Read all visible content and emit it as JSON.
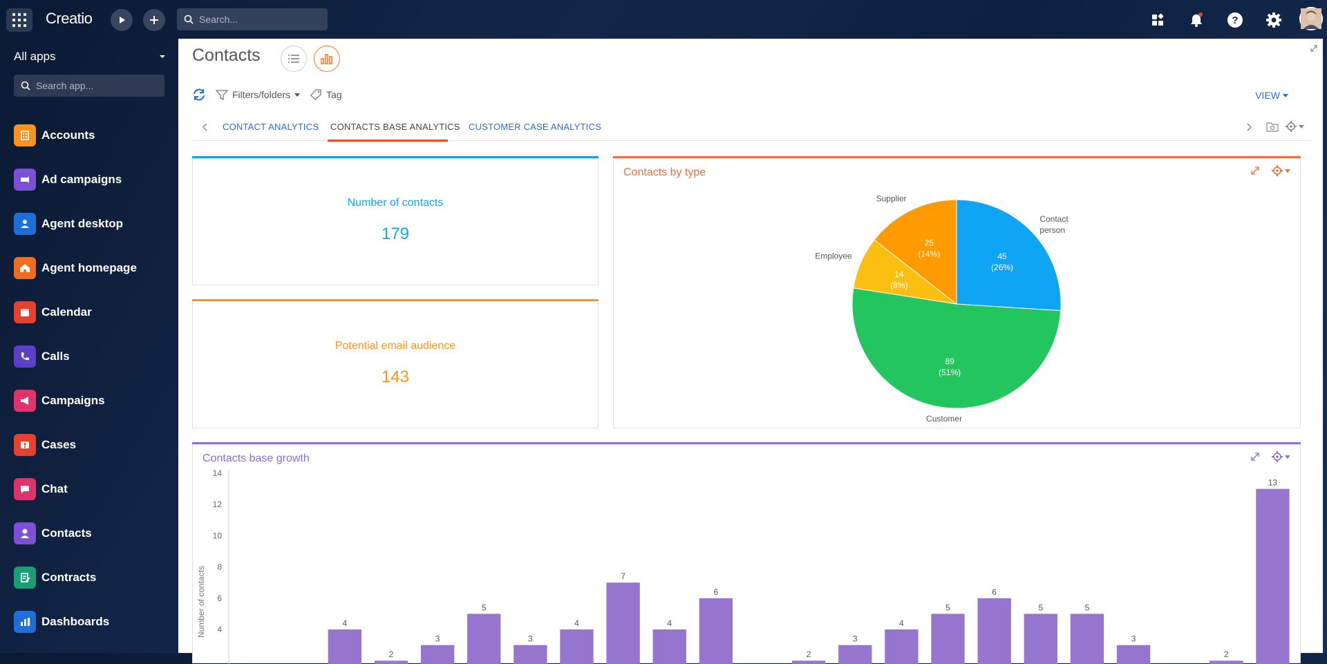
{
  "topbar": {
    "logo": "Creatio",
    "search_placeholder": "Search..."
  },
  "sidebar": {
    "all_apps": "All apps",
    "search_placeholder": "Search app...",
    "items": [
      {
        "label": "Accounts",
        "color": "#f7931e",
        "icon": "building-icon"
      },
      {
        "label": "Ad campaigns",
        "color": "#7b4fd6",
        "icon": "megaphone-cart-icon"
      },
      {
        "label": "Agent desktop",
        "color": "#1e6fd9",
        "icon": "agent-icon"
      },
      {
        "label": "Agent homepage",
        "color": "#f26b21",
        "icon": "home-icon"
      },
      {
        "label": "Calendar",
        "color": "#e8402f",
        "icon": "calendar-icon"
      },
      {
        "label": "Calls",
        "color": "#5b3fc8",
        "icon": "phone-icon"
      },
      {
        "label": "Campaigns",
        "color": "#e0336e",
        "icon": "megaphone-icon"
      },
      {
        "label": "Cases",
        "color": "#e8402f",
        "icon": "case-icon"
      },
      {
        "label": "Chat",
        "color": "#e0336e",
        "icon": "chat-icon"
      },
      {
        "label": "Contacts",
        "color": "#7b4fd6",
        "icon": "person-icon"
      },
      {
        "label": "Contracts",
        "color": "#1b9e77",
        "icon": "contract-icon"
      },
      {
        "label": "Dashboards",
        "color": "#1e6fd9",
        "icon": "dashboard-icon"
      }
    ]
  },
  "page": {
    "title": "Contacts",
    "filters_label": "Filters/folders",
    "tag_label": "Tag",
    "view_label": "VIEW",
    "tabs": [
      {
        "label": "CONTACT ANALYTICS"
      },
      {
        "label": "CONTACTS BASE ANALYTICS"
      },
      {
        "label": "CUSTOMER CASE ANALYTICS"
      }
    ]
  },
  "metrics": [
    {
      "title": "Number of contacts",
      "value": "179",
      "color": "#0ea5e9"
    },
    {
      "title": "Potential email audience",
      "value": "143",
      "color": "#f7931e"
    }
  ],
  "chart_data": [
    {
      "type": "pie",
      "title": "Contacts by type",
      "title_color": "#f26b3a",
      "slices": [
        {
          "label": "Contact person",
          "value": 45,
          "pct": "26%",
          "color": "#0ea5f2"
        },
        {
          "label": "Customer",
          "value": 89,
          "pct": "51%",
          "color": "#22c55e"
        },
        {
          "label": "Employee",
          "value": 14,
          "pct": "8%",
          "color": "#fbbf11"
        },
        {
          "label": "Supplier",
          "value": 25,
          "pct": "14%",
          "color": "#ff9a00"
        }
      ]
    },
    {
      "type": "bar",
      "title": "Contacts base growth",
      "title_color": "#8b6dd6",
      "ylabel": "Number of contacts",
      "yticks": [
        4,
        6,
        8,
        10,
        12,
        14
      ],
      "ylim": [
        0,
        14
      ],
      "bar_color": "#9575cd",
      "values": [
        0,
        0,
        4,
        2,
        3,
        5,
        3,
        4,
        7,
        4,
        6,
        0,
        2,
        3,
        4,
        5,
        6,
        5,
        5,
        3,
        0,
        2,
        13
      ]
    }
  ]
}
